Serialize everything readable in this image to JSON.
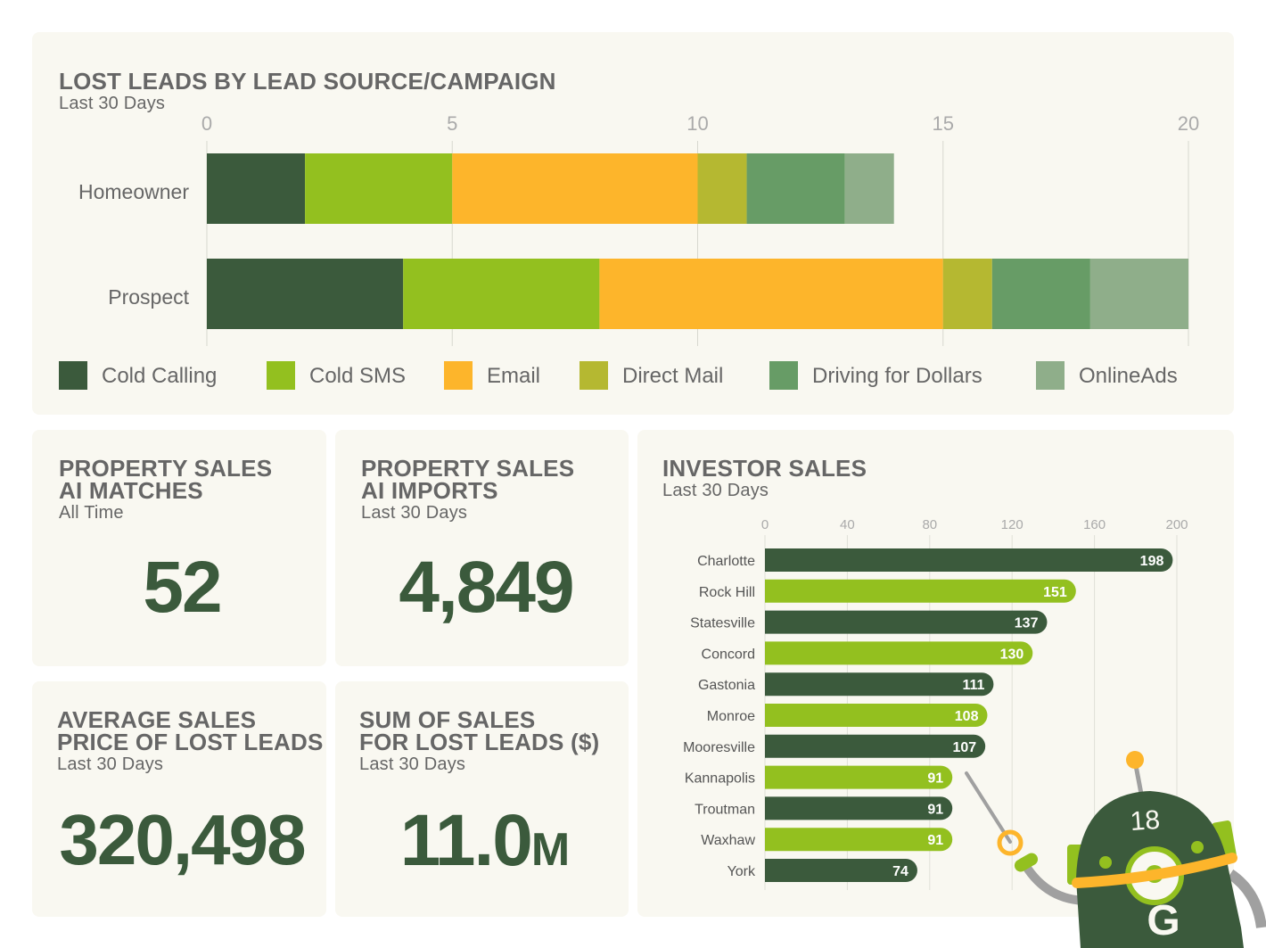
{
  "colors": {
    "card_bg": "#f9f8f1",
    "dark_green": "#3b5a3c",
    "lime": "#93c01f",
    "orange": "#fdb52b"
  },
  "lost_leads": {
    "title": "LOST LEADS BY LEAD SOURCE/CAMPAIGN",
    "subtitle": "Last 30 Days"
  },
  "chart_data": [
    {
      "type": "bar",
      "orientation": "horizontal",
      "stacked": true,
      "title": "LOST LEADS BY LEAD SOURCE/CAMPAIGN",
      "subtitle": "Last 30 Days",
      "categories": [
        "Homeowner",
        "Prospect"
      ],
      "xlim": [
        0,
        20
      ],
      "x_ticks": [
        0,
        5,
        10,
        15,
        20
      ],
      "grid": true,
      "legend_placement": "bottom",
      "series": [
        {
          "name": "Cold Calling",
          "color": "#3b5a3c",
          "values": [
            2,
            4
          ]
        },
        {
          "name": "Cold SMS",
          "color": "#93c01f",
          "values": [
            3,
            4
          ]
        },
        {
          "name": "Email",
          "color": "#fdb52b",
          "values": [
            5,
            7
          ]
        },
        {
          "name": "Direct Mail",
          "color": "#b5b831",
          "values": [
            1,
            1
          ]
        },
        {
          "name": "Driving for Dollars",
          "color": "#679c66",
          "values": [
            2,
            2
          ]
        },
        {
          "name": "OnlineAds",
          "color": "#8fae8a",
          "values": [
            1,
            2
          ]
        }
      ]
    },
    {
      "type": "bar",
      "orientation": "horizontal",
      "title": "INVESTOR SALES",
      "subtitle": "Last 30 Days",
      "categories": [
        "Charlotte",
        "Rock Hill",
        "Statesville",
        "Concord",
        "Gastonia",
        "Monroe",
        "Mooresville",
        "Kannapolis",
        "Troutman",
        "Waxhaw",
        "York"
      ],
      "values": [
        198,
        151,
        137,
        130,
        111,
        108,
        107,
        91,
        91,
        91,
        74
      ],
      "colors": [
        "#3b5a3c",
        "#93c01f",
        "#3b5a3c",
        "#93c01f",
        "#3b5a3c",
        "#93c01f",
        "#3b5a3c",
        "#93c01f",
        "#3b5a3c",
        "#93c01f",
        "#3b5a3c"
      ],
      "xlim": [
        0,
        200
      ],
      "x_ticks": [
        0,
        40,
        80,
        120,
        160,
        200
      ],
      "grid": true,
      "data_labels": true
    }
  ],
  "kpis": [
    {
      "title1": "PROPERTY SALES",
      "title2": "AI MATCHES",
      "subtitle": "All Time",
      "value": "52"
    },
    {
      "title1": "PROPERTY SALES",
      "title2": "AI IMPORTS",
      "subtitle": "Last 30 Days",
      "value": "4,849"
    },
    {
      "title1": "AVERAGE SALES",
      "title2": "PRICE OF LOST LEADS",
      "subtitle": "Last 30 Days",
      "value": "320,498"
    },
    {
      "title1": "SUM OF SALES",
      "title2": "FOR LOST LEADS ($)",
      "subtitle": "Last 30 Days",
      "value": "11.0",
      "unit": "M"
    }
  ],
  "investor": {
    "title": "INVESTOR SALES",
    "subtitle": "Last 30 Days"
  },
  "mascot": {
    "badge_number": "18",
    "logo_letter": "G"
  }
}
